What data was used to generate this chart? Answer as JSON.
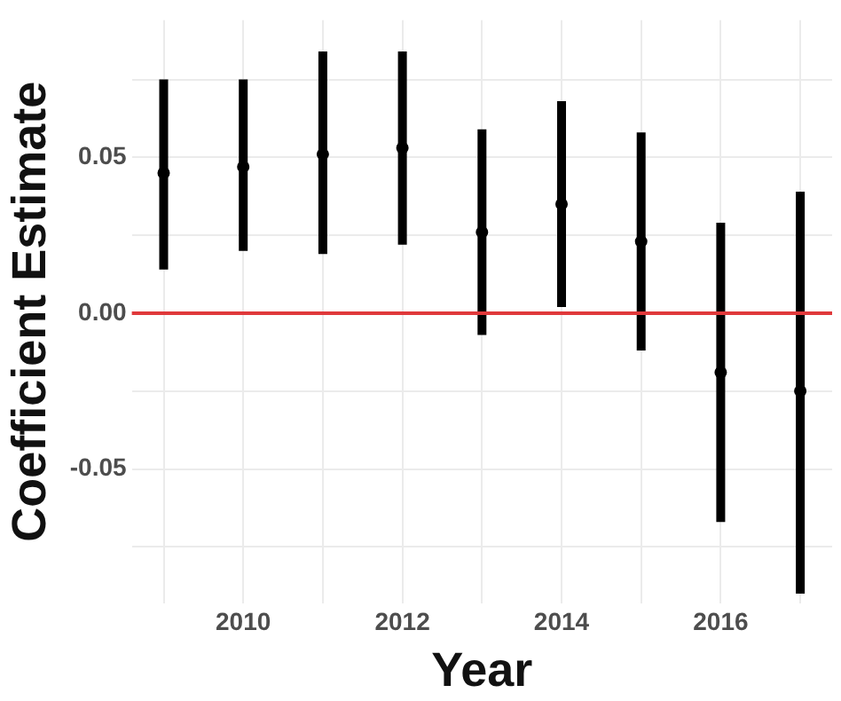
{
  "chart_data": {
    "type": "scatter",
    "xlabel": "Year",
    "ylabel": "Coefficient Estimate",
    "x": [
      2009,
      2010,
      2011,
      2012,
      2013,
      2014,
      2015,
      2016,
      2017
    ],
    "series": [
      {
        "color": "#000000",
        "values": [
          0.045,
          0.047,
          0.051,
          0.053,
          0.026,
          0.035,
          0.023,
          -0.019,
          -0.025
        ],
        "errors": [
          [
            0.014,
            0.075
          ],
          [
            0.02,
            0.075
          ],
          [
            0.019,
            0.084
          ],
          [
            0.022,
            0.084
          ],
          [
            -0.007,
            0.059
          ],
          [
            0.002,
            0.068
          ],
          [
            -0.012,
            0.058
          ],
          [
            -0.067,
            0.029
          ],
          [
            -0.09,
            0.039
          ]
        ]
      }
    ],
    "xlim": [
      2008.6,
      2017.4
    ],
    "xticks": [
      {
        "value": 2009,
        "label": null
      },
      2010,
      {
        "value": 2011,
        "label": null
      },
      2012,
      {
        "value": 2013,
        "label": null
      },
      2014,
      {
        "value": 2015,
        "label": null
      },
      2016,
      {
        "value": 2017,
        "label": null
      }
    ],
    "ylim": [
      -0.093,
      0.094
    ],
    "yticks": [
      {
        "value": -0.075,
        "label": null
      },
      -0.05,
      {
        "value": -0.025,
        "label": null
      },
      {
        "value": 0,
        "label": "0.00"
      },
      {
        "value": 0.025,
        "label": null
      },
      0.05,
      {
        "value": 0.075,
        "label": null
      }
    ],
    "ref_lines": [
      {
        "axis": "y",
        "value": 0,
        "color": "#e0393b"
      }
    ],
    "grid": true,
    "legend": false,
    "marker": "circle"
  }
}
